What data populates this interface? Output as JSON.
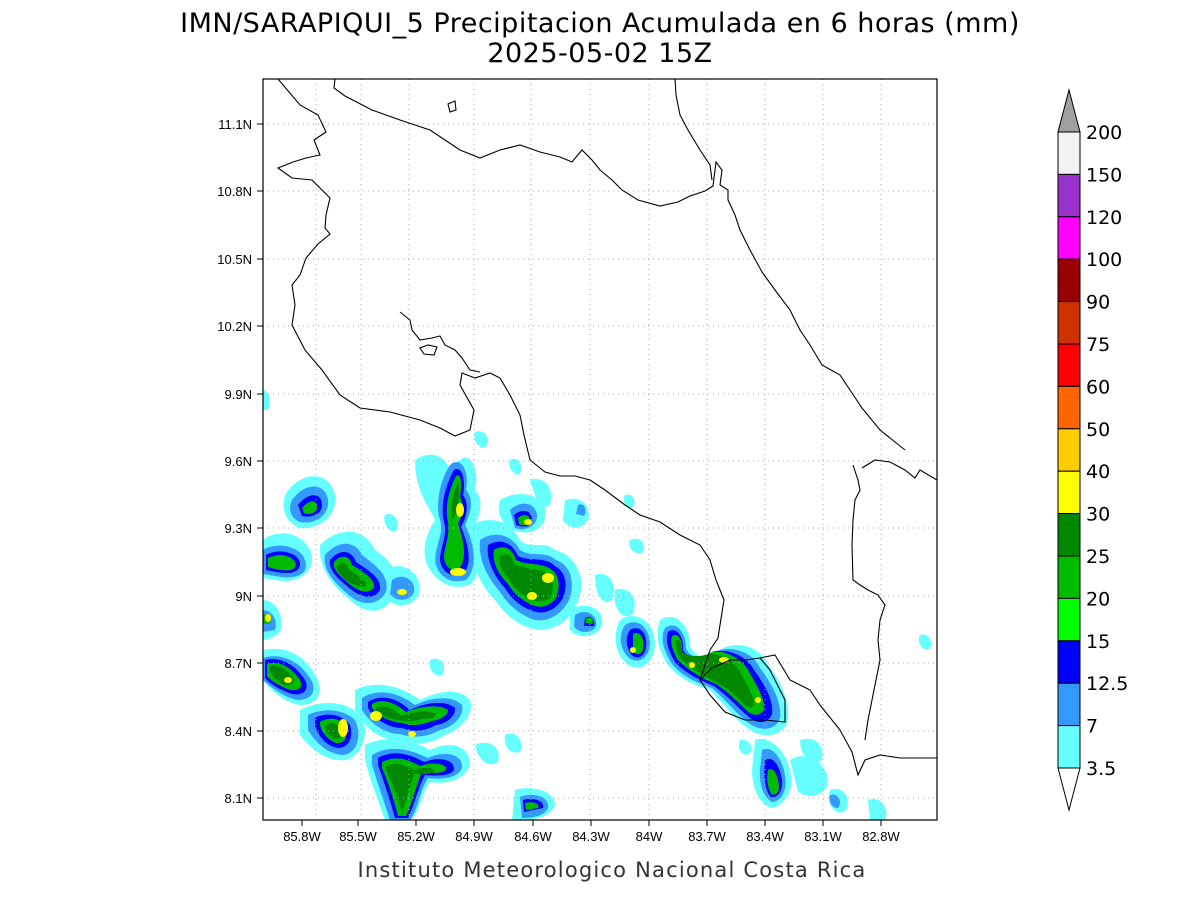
{
  "title": "IMN/SARAPIQUI_5 Precipitacion Acumulada en 6 horas (mm)",
  "subtitle": "2025-05-02 15Z",
  "footer": "Instituto Meteorologico Nacional Costa Rica",
  "lat_labels": [
    "11.1N",
    "10.8N",
    "10.5N",
    "10.2N",
    "9.9N",
    "9.6N",
    "9.3N",
    "9N",
    "8.7N",
    "8.4N",
    "8.1N"
  ],
  "lon_labels": [
    "85.8W",
    "85.5W",
    "85.2W",
    "84.9W",
    "84.6W",
    "84.3W",
    "84W",
    "83.7W",
    "83.4W",
    "83.1W",
    "82.8W"
  ],
  "colorbar": {
    "labels": [
      "200",
      "150",
      "120",
      "100",
      "90",
      "75",
      "60",
      "50",
      "40",
      "30",
      "25",
      "20",
      "15",
      "12.5",
      "7",
      "3.5"
    ],
    "colors": [
      "#a0a0a0",
      "#f2f2f2",
      "#9932cc",
      "#ff00ff",
      "#990000",
      "#cc3300",
      "#ff0000",
      "#ff6600",
      "#ffcc00",
      "#ffff00",
      "#008800",
      "#00bb00",
      "#00ff00",
      "#0000ff",
      "#3399ff",
      "#66ffff",
      "#ffffff"
    ]
  },
  "precip_colors": {
    "light": "#66ffff",
    "mid": "#3399ff",
    "heavy": "#0000ff",
    "g1": "#00bb00",
    "g2": "#008800",
    "y": "#ffff00"
  }
}
